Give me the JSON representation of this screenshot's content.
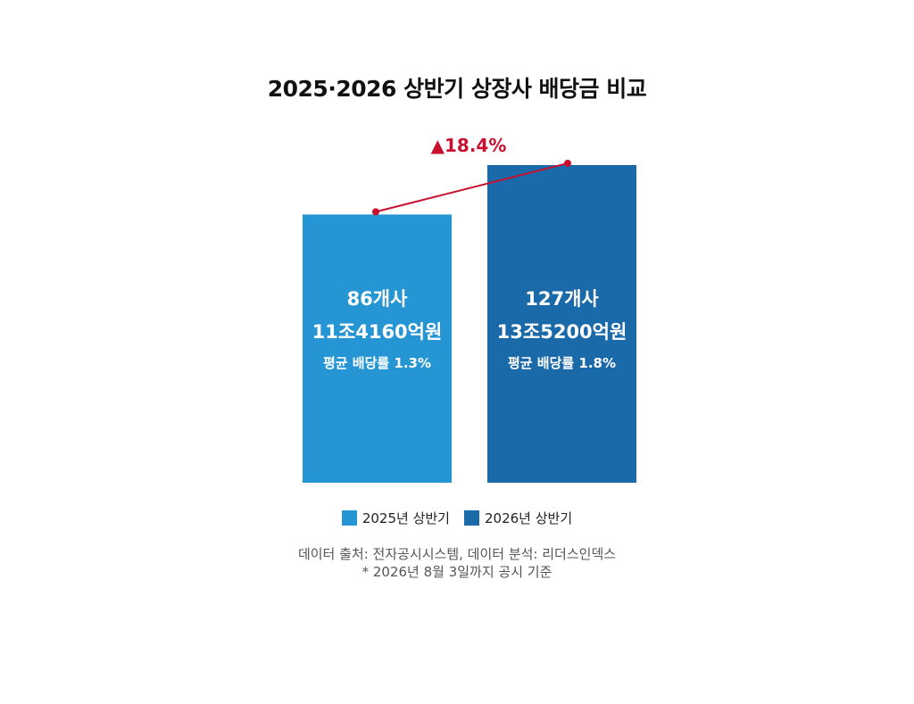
{
  "chart_data": {
    "type": "bar",
    "title": "2025·2026 상반기 상장사 배당금 비교",
    "categories": [
      "2025년 상반기",
      "2026년 상반기"
    ],
    "series": [
      {
        "name": "배당금",
        "values": [
          11.416,
          13.52
        ],
        "value_unit": "조원",
        "colors": [
          "#2596d3",
          "#1a6aaa"
        ]
      }
    ],
    "bar_labels": [
      {
        "companies": "86개사",
        "amount": "11조4160억원",
        "yield": "평균 배당률 1.3%"
      },
      {
        "companies": "127개사",
        "amount": "13조5200억원",
        "yield": "평균 배당률 1.8%"
      }
    ],
    "change_annotation": "▲18.4%",
    "annotation_color": "#c8102e",
    "ylim": [
      0,
      14
    ],
    "grid": false,
    "legend": {
      "placement": "bottom",
      "entries": [
        {
          "label": "2025년 상반기",
          "color": "#2596d3"
        },
        {
          "label": "2026년 상반기",
          "color": "#1a6aaa"
        }
      ]
    }
  },
  "footer": {
    "source": "데이터 출처: 전자공시시스템, 데이터 분석: 리더스인덱스",
    "note": "* 2026년 8월 3일까지 공시 기준"
  }
}
